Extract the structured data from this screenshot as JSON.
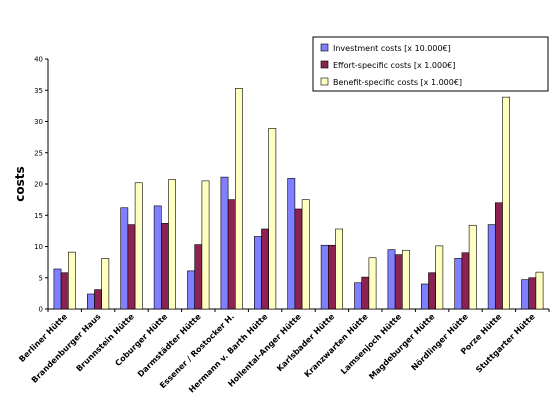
{
  "chart_data": {
    "type": "bar",
    "ylabel": "costs",
    "xlabel": "",
    "ylim": [
      0,
      40
    ],
    "yticks": [
      0,
      5,
      10,
      15,
      20,
      25,
      30,
      35,
      40
    ],
    "grid": false,
    "legend_position": "top-right",
    "categories": [
      "Berliner Hütte",
      "Brandenburger Haus",
      "Brunnstein Hütte",
      "Coburger Hütte",
      "Darmstädter Hütte",
      "Essener / Rostocker H.",
      "Hermann v. Barth Hütte",
      "Hollental-Anger Hütte",
      "Karlsbader Hütte",
      "Kranzwarten Hütte",
      "Lamsenjoch Hütte",
      "Magdeburger Hütte",
      "Nördlinger Hütte",
      "Porze Hütte",
      "Stuttgarter Hütte"
    ],
    "series": [
      {
        "name": "Investment costs [x 10.000€]",
        "color": "#7f7fff",
        "values": [
          6.4,
          2.4,
          16.2,
          16.5,
          6.1,
          21.1,
          11.6,
          20.9,
          10.2,
          4.2,
          9.5,
          4.0,
          8.1,
          13.5,
          4.7
        ]
      },
      {
        "name": "Effort-specific costs [x 1.000€]",
        "color": "#8b2252",
        "values": [
          5.8,
          3.1,
          13.5,
          13.7,
          10.3,
          17.5,
          12.8,
          16.0,
          10.2,
          5.1,
          8.7,
          5.8,
          9.0,
          17.0,
          5.0
        ]
      },
      {
        "name": "Benefit-specific costs [x 1.000€]",
        "color": "#ffffc0",
        "values": [
          9.1,
          8.1,
          20.2,
          20.7,
          20.5,
          35.3,
          28.9,
          17.5,
          12.8,
          8.2,
          9.4,
          10.1,
          13.4,
          33.9,
          5.9
        ]
      }
    ]
  }
}
